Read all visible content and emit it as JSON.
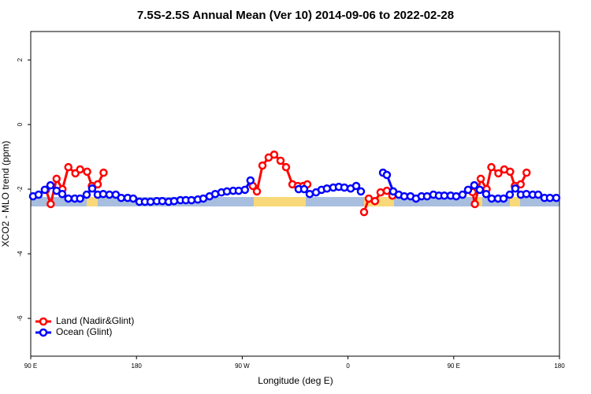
{
  "chart_data": {
    "type": "line",
    "title": "7.5S-2.5S Annual Mean (Ver 10)   2014-09-06 to 2022-02-28",
    "x_label": "Longitude (deg E)",
    "y_label": "XCO2 - MLO trend (ppm)",
    "xlim": [
      90,
      540
    ],
    "ylim": [
      -7.17,
      2.88
    ],
    "xticks": [
      {
        "value": 90,
        "label": "90 E"
      },
      {
        "value": 180,
        "label": "180"
      },
      {
        "value": 270,
        "label": "90 W"
      },
      {
        "value": 360,
        "label": "0"
      },
      {
        "value": 450,
        "label": "90 E"
      },
      {
        "value": 540,
        "label": "180"
      }
    ],
    "yticks": [
      2,
      0,
      -2,
      -4,
      -6
    ],
    "legend": "bottom-left",
    "series": [
      {
        "name": "Land (Nadir&Glint)",
        "color": "#ff0000",
        "x": [
          103,
          107,
          112,
          117,
          122,
          128,
          132,
          138,
          142,
          147,
          152,
          null,
          279,
          282.5,
          287.2,
          292.5,
          297.2,
          302.6,
          307.3,
          312.7,
          317.3,
          322,
          325.4,
          null,
          373.7,
          377.7,
          383,
          387.7,
          393.1,
          397.8,
          null,
          466,
          468,
          473,
          478,
          482,
          488,
          493,
          498,
          502,
          507,
          512
        ],
        "values": [
          -2.02,
          -2.46,
          -1.68,
          -2.0,
          -1.32,
          -1.51,
          -1.39,
          -1.46,
          -1.9,
          -1.85,
          -1.49,
          null,
          -1.9,
          -2.07,
          -1.27,
          -1.02,
          -0.93,
          -1.12,
          -1.32,
          -1.85,
          -1.9,
          -1.9,
          -1.85,
          null,
          -2.71,
          -2.29,
          -2.37,
          -2.1,
          -2.05,
          -2.2,
          null,
          -2.09,
          -2.46,
          -1.68,
          -2.0,
          -1.32,
          -1.51,
          -1.39,
          -1.46,
          -1.9,
          -1.85,
          -1.49
        ]
      },
      {
        "name": "Ocean (Glint)",
        "color": "#0000ff",
        "x": [
          92,
          96.7,
          102,
          106.8,
          112,
          116.8,
          122,
          127.5,
          132,
          137.6,
          142.3,
          147,
          151.7,
          157,
          162.4,
          167,
          172.5,
          177.2,
          182.5,
          187.2,
          192,
          197.3,
          202,
          207.4,
          212,
          217.4,
          222,
          226.8,
          232.2,
          236.9,
          242.2,
          247,
          252.3,
          257,
          262.3,
          267,
          272.3,
          277,
          null,
          318,
          322.7,
          327.4,
          332.8,
          337.5,
          342.1,
          347.5,
          352.2,
          356.9,
          362.3,
          367,
          371,
          null,
          389.8,
          393.1,
          398.5,
          403.2,
          407.9,
          413.2,
          417.9,
          422.6,
          427.3,
          432.7,
          437.4,
          442,
          447.4,
          452.1,
          457.5,
          462.2,
          467.5,
          472.2,
          477.6,
          482.3,
          487.7,
          492.4,
          497.7,
          502.4,
          507.1,
          511.8,
          517.2,
          521.9,
          527.2,
          531.9,
          537.3
        ],
        "values": [
          -2.22,
          -2.17,
          -2.02,
          -1.88,
          -2.05,
          -2.15,
          -2.29,
          -2.29,
          -2.29,
          -2.17,
          -1.98,
          -2.17,
          -2.15,
          -2.17,
          -2.17,
          -2.27,
          -2.27,
          -2.29,
          -2.39,
          -2.39,
          -2.39,
          -2.37,
          -2.37,
          -2.39,
          -2.37,
          -2.34,
          -2.34,
          -2.34,
          -2.32,
          -2.29,
          -2.22,
          -2.15,
          -2.1,
          -2.07,
          -2.05,
          -2.05,
          -2.02,
          -1.73,
          null,
          -2.0,
          -2.0,
          -2.15,
          -2.1,
          -2.02,
          -1.98,
          -1.95,
          -1.93,
          -1.95,
          -1.98,
          -1.9,
          -2.07,
          null,
          -1.49,
          -1.56,
          -2.07,
          -2.17,
          -2.22,
          -2.22,
          -2.29,
          -2.22,
          -2.22,
          -2.17,
          -2.2,
          -2.2,
          -2.2,
          -2.22,
          -2.17,
          -2.02,
          -1.88,
          -2.02,
          -2.15,
          -2.29,
          -2.29,
          -2.29,
          -2.17,
          -1.98,
          -2.17,
          -2.15,
          -2.17,
          -2.17,
          -2.27,
          -2.27,
          -2.27
        ]
      }
    ]
  }
}
